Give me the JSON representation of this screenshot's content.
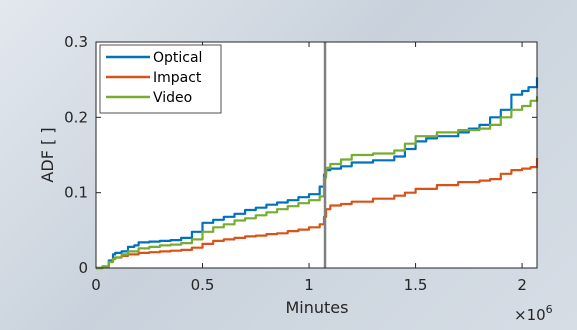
{
  "chart_data": {
    "type": "line",
    "title": "",
    "xlabel": "Minutes",
    "ylabel": "ADF [ ]",
    "x_exponent_label": "×10",
    "x_exponent_power": "6",
    "xlim": [
      0,
      2.07
    ],
    "ylim": [
      0,
      0.3
    ],
    "x_scale": 1000000,
    "x_ticks": [
      0,
      0.5,
      1,
      1.5,
      2
    ],
    "x_tick_labels": [
      "0",
      "0.5",
      "1",
      "1.5",
      "2"
    ],
    "y_ticks": [
      0,
      0.1,
      0.2,
      0.3
    ],
    "y_tick_labels": [
      "0",
      "0.1",
      "0.2",
      "0.3"
    ],
    "grid": false,
    "legend_position": "top-left",
    "vertical_marker_x": 1.075,
    "colors": {
      "marker": "#808080",
      "axis": "#262626",
      "plot_background": "#ffffff"
    },
    "series": [
      {
        "name": "Optical",
        "color": "#0072BD",
        "x": [
          0,
          0.03,
          0.06,
          0.08,
          0.09,
          0.12,
          0.15,
          0.18,
          0.2,
          0.25,
          0.3,
          0.35,
          0.4,
          0.45,
          0.5,
          0.55,
          0.6,
          0.65,
          0.7,
          0.75,
          0.8,
          0.85,
          0.9,
          0.95,
          1.0,
          1.05,
          1.07,
          1.08,
          1.1,
          1.15,
          1.2,
          1.3,
          1.4,
          1.45,
          1.5,
          1.55,
          1.6,
          1.7,
          1.75,
          1.8,
          1.85,
          1.9,
          1.95,
          2.0,
          2.03,
          2.07
        ],
        "y": [
          0,
          0.002,
          0.01,
          0.018,
          0.02,
          0.022,
          0.028,
          0.03,
          0.034,
          0.035,
          0.036,
          0.037,
          0.04,
          0.048,
          0.06,
          0.064,
          0.068,
          0.072,
          0.077,
          0.08,
          0.084,
          0.087,
          0.09,
          0.094,
          0.098,
          0.108,
          0.124,
          0.13,
          0.132,
          0.135,
          0.14,
          0.143,
          0.148,
          0.158,
          0.168,
          0.172,
          0.175,
          0.18,
          0.185,
          0.19,
          0.2,
          0.21,
          0.23,
          0.235,
          0.24,
          0.253
        ]
      },
      {
        "name": "Impact",
        "color": "#D95319",
        "x": [
          0,
          0.03,
          0.06,
          0.08,
          0.09,
          0.12,
          0.15,
          0.2,
          0.25,
          0.3,
          0.35,
          0.4,
          0.45,
          0.5,
          0.55,
          0.6,
          0.65,
          0.7,
          0.75,
          0.8,
          0.85,
          0.9,
          0.95,
          1.0,
          1.05,
          1.07,
          1.08,
          1.1,
          1.15,
          1.2,
          1.3,
          1.4,
          1.45,
          1.5,
          1.6,
          1.7,
          1.8,
          1.85,
          1.9,
          1.95,
          2.0,
          2.04,
          2.07
        ],
        "y": [
          0,
          0.002,
          0.008,
          0.012,
          0.014,
          0.016,
          0.018,
          0.02,
          0.021,
          0.022,
          0.023,
          0.024,
          0.027,
          0.032,
          0.036,
          0.038,
          0.04,
          0.042,
          0.043,
          0.045,
          0.046,
          0.049,
          0.051,
          0.054,
          0.058,
          0.068,
          0.078,
          0.083,
          0.085,
          0.088,
          0.092,
          0.096,
          0.1,
          0.105,
          0.11,
          0.114,
          0.116,
          0.118,
          0.125,
          0.13,
          0.132,
          0.134,
          0.146
        ]
      },
      {
        "name": "Video",
        "color": "#77AC30",
        "x": [
          0,
          0.03,
          0.06,
          0.08,
          0.09,
          0.12,
          0.15,
          0.2,
          0.25,
          0.3,
          0.35,
          0.4,
          0.45,
          0.5,
          0.55,
          0.6,
          0.65,
          0.7,
          0.75,
          0.8,
          0.85,
          0.9,
          0.95,
          1.0,
          1.05,
          1.07,
          1.08,
          1.1,
          1.15,
          1.2,
          1.3,
          1.4,
          1.45,
          1.5,
          1.6,
          1.7,
          1.8,
          1.85,
          1.9,
          1.95,
          2.0,
          2.04,
          2.07
        ],
        "y": [
          0,
          0.002,
          0.008,
          0.012,
          0.014,
          0.018,
          0.022,
          0.026,
          0.028,
          0.03,
          0.031,
          0.033,
          0.038,
          0.048,
          0.054,
          0.058,
          0.063,
          0.066,
          0.07,
          0.074,
          0.078,
          0.082,
          0.086,
          0.09,
          0.095,
          0.12,
          0.133,
          0.138,
          0.144,
          0.15,
          0.152,
          0.156,
          0.165,
          0.175,
          0.18,
          0.183,
          0.185,
          0.19,
          0.2,
          0.21,
          0.215,
          0.222,
          0.228
        ]
      }
    ]
  }
}
